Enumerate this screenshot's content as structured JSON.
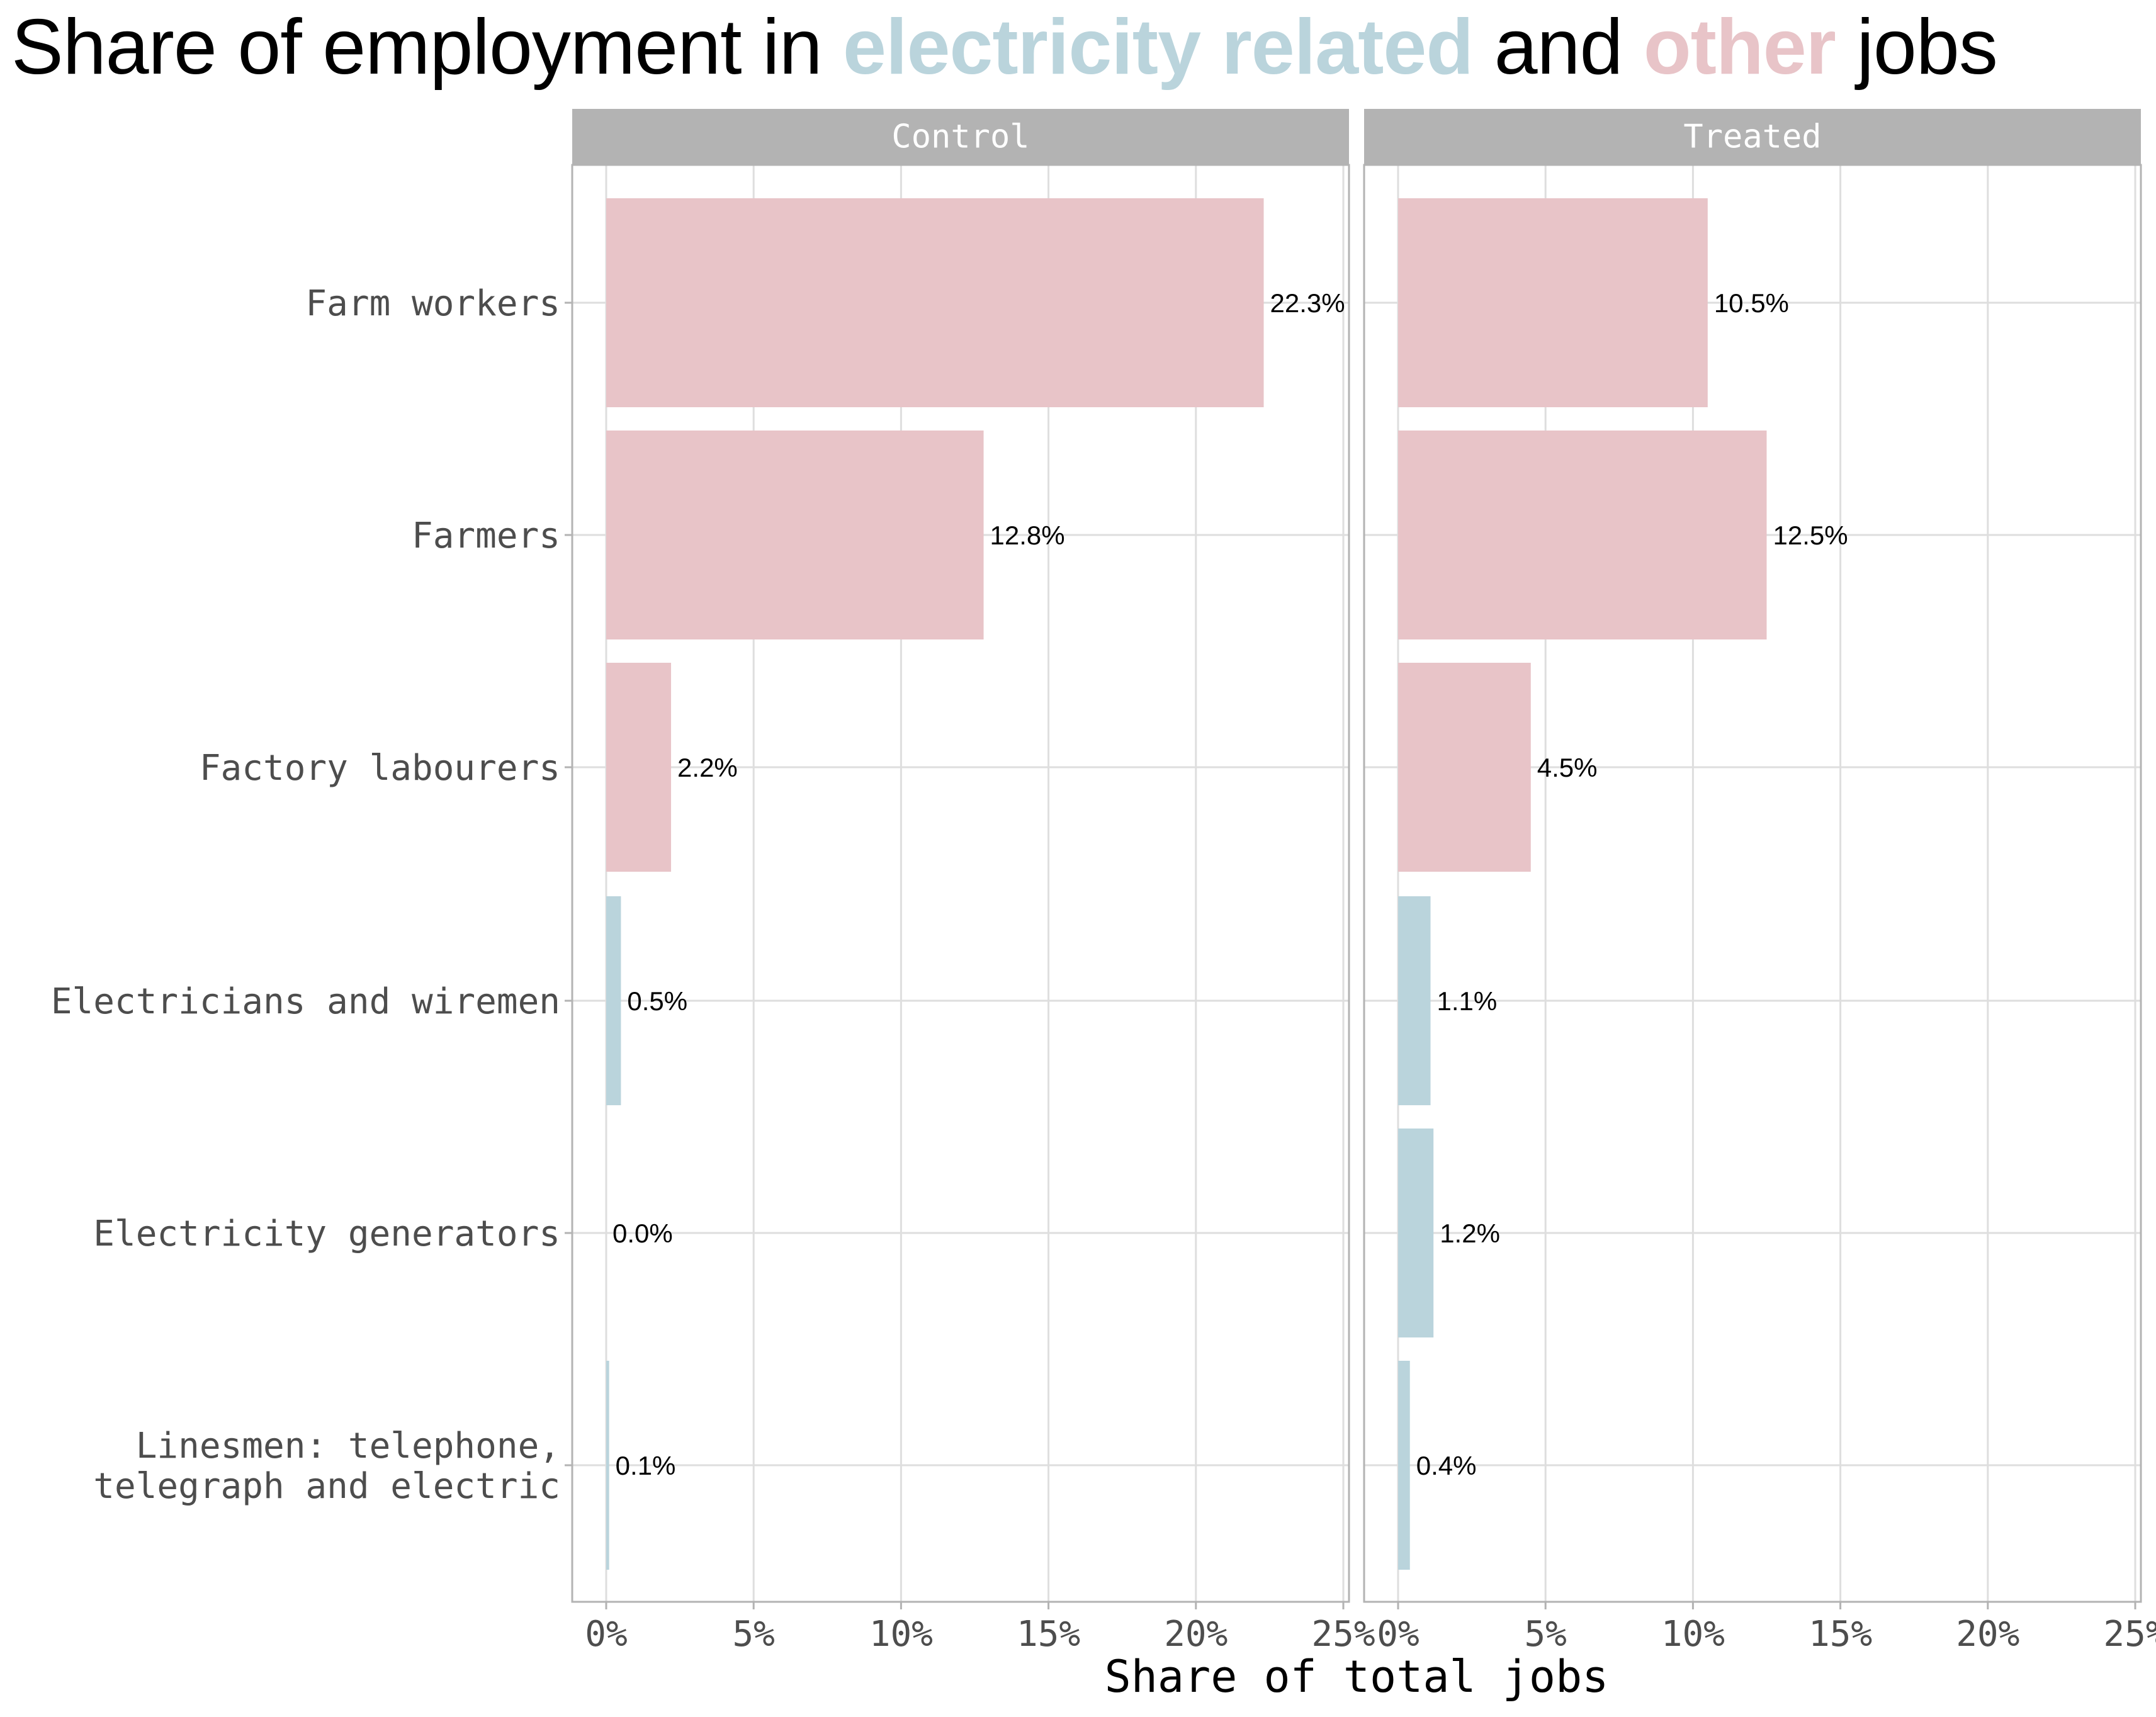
{
  "title": {
    "parts": [
      {
        "text": "Share of employment in ",
        "color": "#000000",
        "bold": false
      },
      {
        "text": "electricity related",
        "color": "#BAD4DC",
        "bold": true
      },
      {
        "text": " and ",
        "color": "#000000",
        "bold": false
      },
      {
        "text": "other",
        "color": "#E8C4C8",
        "bold": true
      },
      {
        "text": " jobs",
        "color": "#000000",
        "bold": false
      }
    ]
  },
  "chart_data": {
    "type": "bar",
    "orientation": "horizontal",
    "title": "Share of employment in electricity related and other jobs",
    "xlabel": "Share of total jobs",
    "ylabel": "",
    "xlim": [
      0,
      25
    ],
    "x_ticks": [
      "0%",
      "5%",
      "10%",
      "15%",
      "20%",
      "25%"
    ],
    "x_tick_values": [
      0,
      5,
      10,
      15,
      20,
      25
    ],
    "grid": true,
    "legend": "none (colors explained in title)",
    "colors": {
      "electricity": "#BAD4DC",
      "other": "#E8C4C8"
    },
    "categories": [
      {
        "label": [
          "Farm workers"
        ],
        "group": "other"
      },
      {
        "label": [
          "Farmers"
        ],
        "group": "other"
      },
      {
        "label": [
          "Factory labourers"
        ],
        "group": "other"
      },
      {
        "label": [
          "Electricians and wiremen"
        ],
        "group": "electricity"
      },
      {
        "label": [
          "Electricity generators"
        ],
        "group": "electricity"
      },
      {
        "label": [
          "Linesmen: telephone,",
          "telegraph and electric"
        ],
        "group": "electricity"
      }
    ],
    "panels": [
      {
        "name": "Control",
        "values": [
          22.3,
          12.8,
          2.2,
          0.5,
          0.0,
          0.1
        ],
        "labels": [
          "22.3%",
          "12.8%",
          "2.2%",
          "0.5%",
          "0.0%",
          "0.1%"
        ]
      },
      {
        "name": "Treated",
        "values": [
          10.5,
          12.5,
          4.5,
          1.1,
          1.2,
          0.4
        ],
        "labels": [
          "10.5%",
          "12.5%",
          "4.5%",
          "1.1%",
          "1.2%",
          "0.4%"
        ]
      }
    ]
  }
}
